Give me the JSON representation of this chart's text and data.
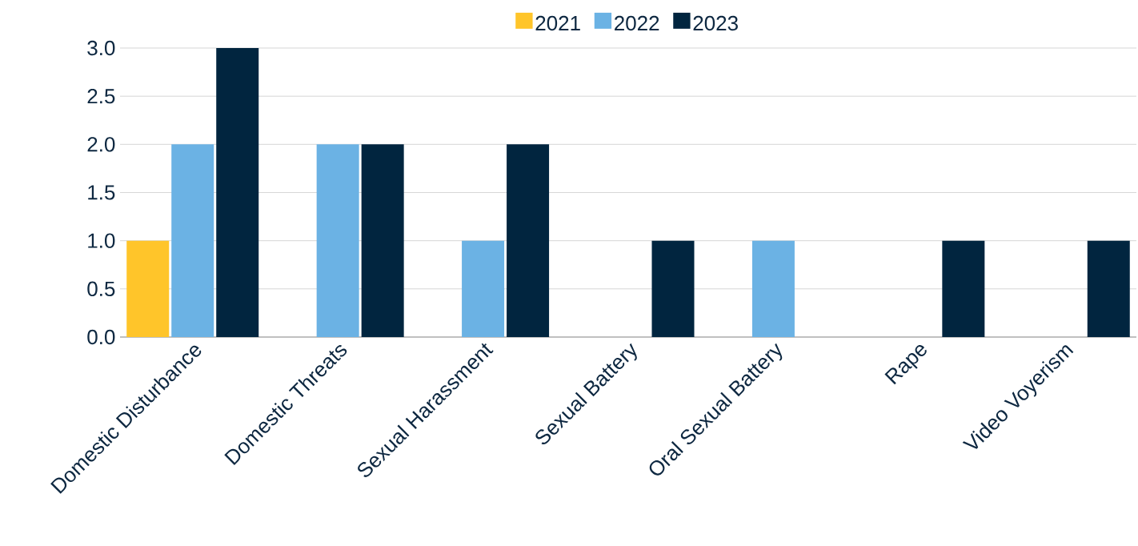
{
  "chart_data": {
    "type": "bar",
    "categories": [
      "Domestic Disturbance",
      "Domestic Threats",
      "Sexual Harassment",
      "Sexual Battery",
      "Oral Sexual Battery",
      "Rape",
      "Video Voyerism"
    ],
    "series": [
      {
        "name": "2021",
        "color": "#ffc52a",
        "values": [
          1,
          null,
          null,
          null,
          null,
          null,
          null
        ]
      },
      {
        "name": "2022",
        "color": "#6bb2e4",
        "values": [
          2,
          2,
          1,
          null,
          1,
          null,
          null
        ]
      },
      {
        "name": "2023",
        "color": "#01253f",
        "values": [
          3,
          2,
          2,
          1,
          null,
          1,
          1
        ]
      }
    ],
    "ylim": [
      0,
      3
    ],
    "yticks": [
      {
        "value": 0,
        "label": "0.0"
      },
      {
        "value": 0.5,
        "label": "0.5"
      },
      {
        "value": 1,
        "label": "1.0"
      },
      {
        "value": 1.5,
        "label": "1.5"
      },
      {
        "value": 2,
        "label": "2.0"
      },
      {
        "value": 2.5,
        "label": "2.5"
      },
      {
        "value": 3,
        "label": "3.0"
      }
    ],
    "grid": "y",
    "legend": "top"
  }
}
